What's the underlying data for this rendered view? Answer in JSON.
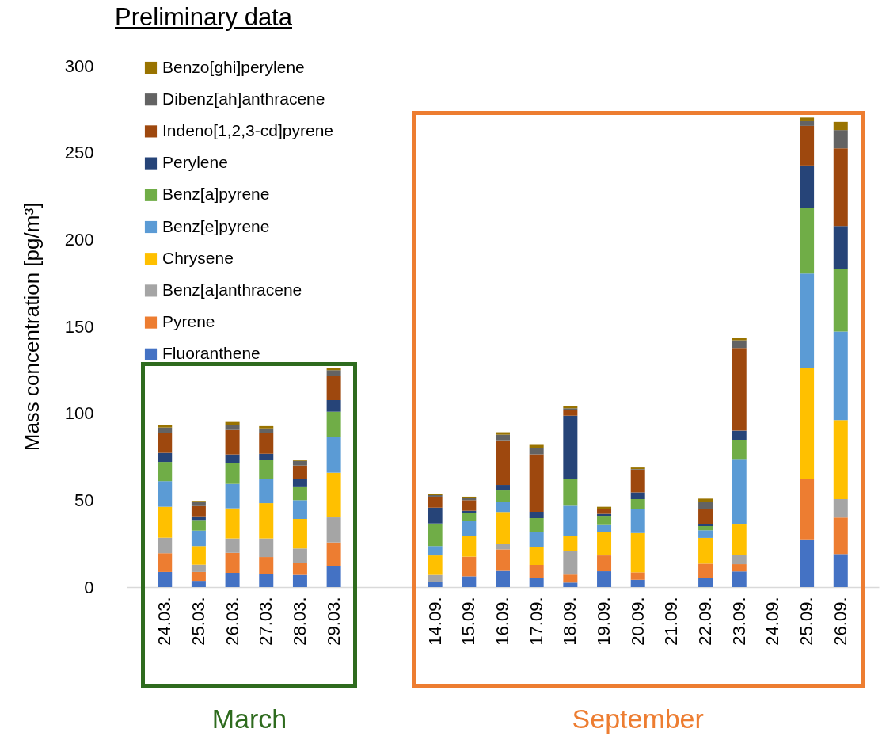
{
  "chart_data": {
    "type": "bar",
    "title": "Preliminary data",
    "ylabel": "Mass concentration [pg/m³]",
    "categories": [
      "24.03.",
      "25.03.",
      "26.03.",
      "27.03.",
      "28.03.",
      "29.03.",
      null,
      null,
      "14.09.",
      "15.09.",
      "16.09.",
      "17.09.",
      "18.09.",
      "19.09.",
      "20.09.",
      "21.09.",
      "22.09.",
      "23.09.",
      "24.09.",
      "25.09.",
      "26.09."
    ],
    "stacked": true,
    "ylim": [
      0,
      300
    ],
    "yticks": [
      0,
      50,
      100,
      150,
      200,
      250,
      300
    ],
    "grid": false,
    "legend": "top left",
    "annotations": [
      "March",
      "September"
    ],
    "series": [
      {
        "name": "Fluoranthene",
        "color": "#4472c4",
        "values": [
          8.7,
          3.6,
          8.2,
          7.6,
          7.0,
          12.3,
          null,
          null,
          3.0,
          6.2,
          9.3,
          5.2,
          2.6,
          9.1,
          4.2,
          null,
          5.2,
          9.0,
          null,
          27.5,
          19.0
        ]
      },
      {
        "name": "Pyrene",
        "color": "#ed7d31",
        "values": [
          10.8,
          5.1,
          11.5,
          9.7,
          6.8,
          13.4,
          null,
          null,
          0,
          11.3,
          12.4,
          7.6,
          4.6,
          9.1,
          4.3,
          null,
          8.3,
          4.2,
          null,
          34.8,
          21.0
        ]
      },
      {
        "name": "Benz[a]anthracene",
        "color": "#a5a5a5",
        "values": [
          8.9,
          4.2,
          8.3,
          10.7,
          8.4,
          14.4,
          null,
          null,
          4.0,
          0,
          3.2,
          null,
          13.5,
          0.5,
          null,
          null,
          0,
          5.2,
          null,
          0,
          10.6
        ]
      },
      {
        "name": "Chrysene",
        "color": "#ffc000",
        "values": [
          17.8,
          10.7,
          17.3,
          20.3,
          17.0,
          25.7,
          null,
          null,
          11.2,
          11.7,
          18.3,
          10.3,
          8.5,
          12.9,
          22.6,
          null,
          14.8,
          17.6,
          null,
          63.7,
          45.5
        ]
      },
      {
        "name": "Benz[e]pyrene",
        "color": "#5b9bd5",
        "values": [
          14.8,
          8.9,
          14.1,
          13.7,
          10.8,
          20.7,
          null,
          null,
          5.4,
          9.1,
          6.0,
          8.4,
          17.6,
          4.1,
          13.9,
          null,
          4.4,
          37.7,
          null,
          54.4,
          50.9
        ]
      },
      {
        "name": "Benz[a]pyrene",
        "color": "#70ad47",
        "values": [
          11.0,
          6.1,
          12.1,
          11.0,
          7.5,
          14.4,
          null,
          null,
          13.0,
          4.1,
          6.4,
          8.2,
          15.7,
          5.3,
          5.6,
          null,
          2.4,
          11.1,
          null,
          38.0,
          35.9
        ]
      },
      {
        "name": "Perylene",
        "color": "#264478",
        "values": [
          5.2,
          2.1,
          4.8,
          3.7,
          4.7,
          6.7,
          null,
          null,
          9.1,
          1.5,
          3.2,
          3.6,
          36.1,
          1.1,
          3.9,
          null,
          1.1,
          5.2,
          null,
          24.2,
          24.9
        ]
      },
      {
        "name": "Indeno[1,2,3-cd]pyrene",
        "color": "#9e480e",
        "values": [
          11.4,
          5.9,
          14.1,
          11.9,
          7.7,
          13.7,
          null,
          null,
          6.3,
          6.1,
          25.7,
          33.1,
          3.2,
          2.6,
          13.1,
          null,
          8.8,
          47.6,
          null,
          22.8,
          44.7
        ]
      },
      {
        "name": "Dibenz[ah]anthracene",
        "color": "#636363",
        "values": [
          3.2,
          2.2,
          2.9,
          2.7,
          2.7,
          3.5,
          null,
          null,
          0.9,
          1.2,
          3.2,
          3.8,
          1.1,
          0.4,
          0.3,
          null,
          3.9,
          4.4,
          null,
          2.7,
          10.5
        ]
      },
      {
        "name": "Benzo[ghi]perylene",
        "color": "#997300",
        "values": [
          1.4,
          0.8,
          1.7,
          1.3,
          0.8,
          1.1,
          null,
          null,
          0.9,
          0.8,
          1.4,
          1.6,
          1.1,
          1.1,
          0.9,
          null,
          2.0,
          1.5,
          null,
          2.1,
          4.7
        ]
      }
    ]
  }
}
